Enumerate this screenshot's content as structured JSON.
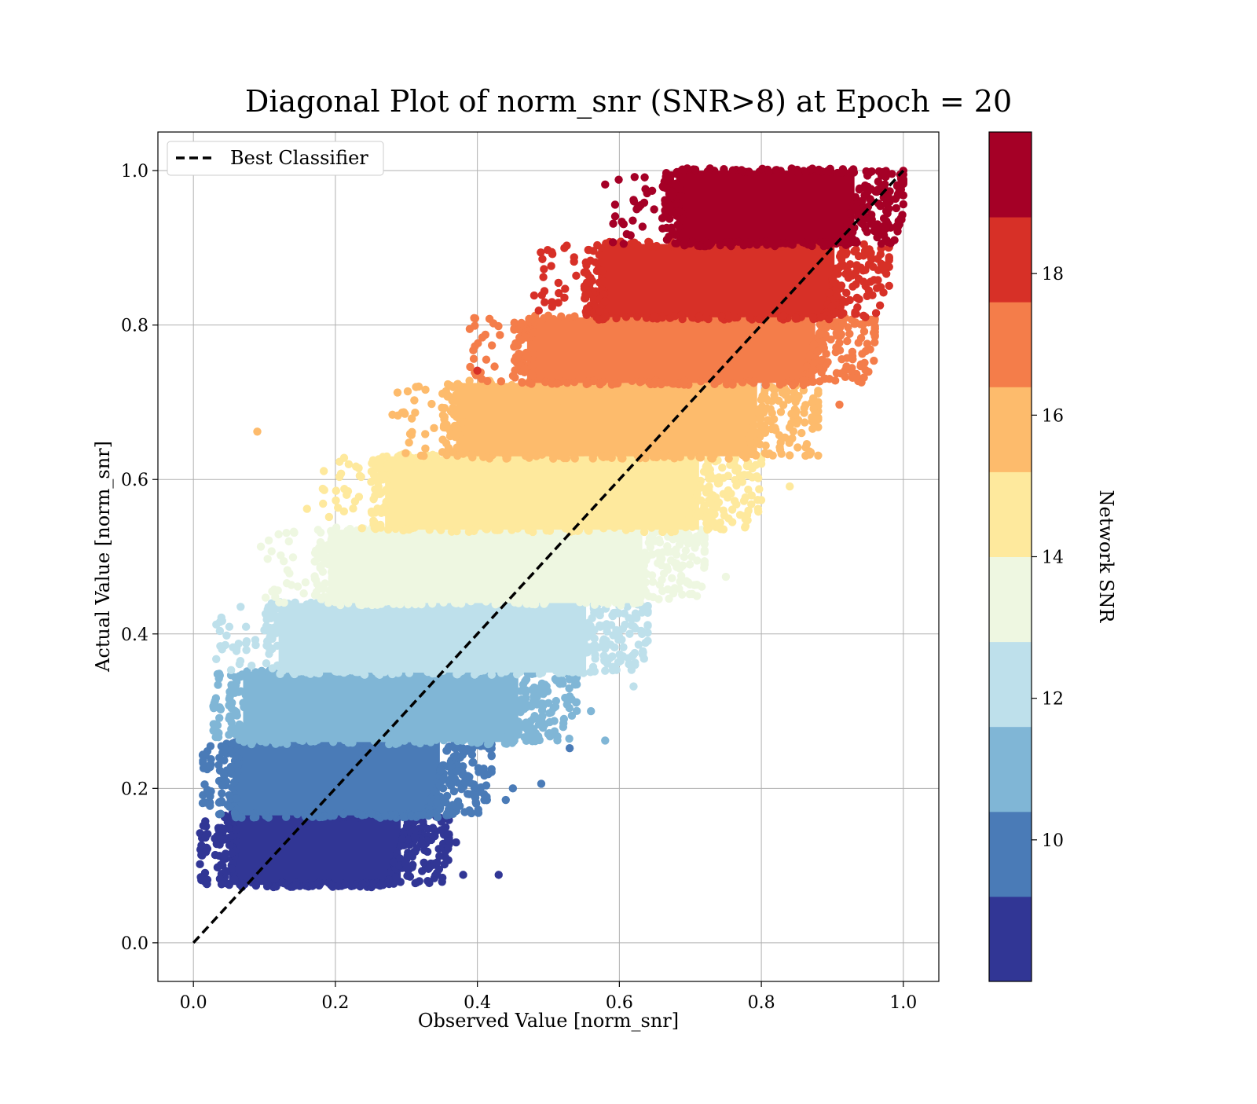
{
  "chart_data": {
    "type": "scatter",
    "title": "Diagonal Plot of norm_snr (SNR>8) at Epoch = 20",
    "xlabel": "Observed Value [norm_snr]",
    "ylabel": "Actual Value [norm_snr]",
    "xlim": [
      -0.05,
      1.05
    ],
    "ylim": [
      -0.05,
      1.05
    ],
    "xticks": [
      "0.0",
      "0.2",
      "0.4",
      "0.6",
      "0.8",
      "1.0"
    ],
    "yticks": [
      "0.0",
      "0.2",
      "0.4",
      "0.6",
      "0.8",
      "1.0"
    ],
    "grid": true,
    "legend": {
      "placement": "upper-left",
      "entries": [
        "Best Classifier"
      ]
    },
    "reference_line": {
      "name": "Best Classifier",
      "style": "dashed",
      "color": "#000000",
      "x": [
        0,
        1
      ],
      "y": [
        0,
        1
      ]
    },
    "colorbar": {
      "label": "Network SNR",
      "range": [
        8,
        20
      ],
      "ticks": [
        "10",
        "12",
        "14",
        "16",
        "18"
      ],
      "bins": [
        {
          "from": 8.0,
          "to": 9.2,
          "color": "#313695"
        },
        {
          "from": 9.2,
          "to": 10.4,
          "color": "#4a7bb7"
        },
        {
          "from": 10.4,
          "to": 11.6,
          "color": "#80b6d6"
        },
        {
          "from": 11.6,
          "to": 12.8,
          "color": "#bee0eb"
        },
        {
          "from": 12.8,
          "to": 14.0,
          "color": "#eef7e1"
        },
        {
          "from": 14.0,
          "to": 15.2,
          "color": "#fee99d"
        },
        {
          "from": 15.2,
          "to": 16.4,
          "color": "#fdbb6c"
        },
        {
          "from": 16.4,
          "to": 17.6,
          "color": "#f47d4a"
        },
        {
          "from": 17.6,
          "to": 18.8,
          "color": "#d73027"
        },
        {
          "from": 18.8,
          "to": 20.0,
          "color": "#a50026"
        }
      ]
    },
    "bands": [
      {
        "snr_bin": 0,
        "y_range": [
          0.075,
          0.165
        ],
        "x_range": [
          0.03,
          0.34
        ]
      },
      {
        "snr_bin": 1,
        "y_range": [
          0.165,
          0.26
        ],
        "x_range": [
          0.035,
          0.4
        ]
      },
      {
        "snr_bin": 2,
        "y_range": [
          0.26,
          0.35
        ],
        "x_range": [
          0.05,
          0.52
        ]
      },
      {
        "snr_bin": 3,
        "y_range": [
          0.35,
          0.44
        ],
        "x_range": [
          0.1,
          0.62
        ]
      },
      {
        "snr_bin": 4,
        "y_range": [
          0.44,
          0.535
        ],
        "x_range": [
          0.17,
          0.7
        ]
      },
      {
        "snr_bin": 5,
        "y_range": [
          0.535,
          0.63
        ],
        "x_range": [
          0.25,
          0.78
        ]
      },
      {
        "snr_bin": 6,
        "y_range": [
          0.63,
          0.725
        ],
        "x_range": [
          0.35,
          0.86
        ]
      },
      {
        "snr_bin": 7,
        "y_range": [
          0.725,
          0.81
        ],
        "x_range": [
          0.45,
          0.94
        ]
      },
      {
        "snr_bin": 8,
        "y_range": [
          0.81,
          0.905
        ],
        "x_range": [
          0.55,
          0.96
        ]
      },
      {
        "snr_bin": 9,
        "y_range": [
          0.905,
          1.0
        ],
        "x_range": [
          0.66,
          0.98
        ]
      }
    ],
    "outliers": [
      [
        0.09,
        0.662,
        6
      ],
      [
        0.43,
        0.088,
        0
      ],
      [
        0.38,
        0.088,
        0
      ],
      [
        0.49,
        0.206,
        1
      ],
      [
        0.53,
        0.252,
        1
      ],
      [
        0.58,
        0.262,
        2
      ],
      [
        0.62,
        0.332,
        3
      ],
      [
        0.56,
        0.3,
        2
      ],
      [
        0.4,
        0.741,
        8
      ],
      [
        0.58,
        0.982,
        9
      ],
      [
        0.62,
        0.962,
        9
      ],
      [
        0.75,
        0.474,
        4
      ],
      [
        0.84,
        0.591,
        5
      ],
      [
        0.88,
        0.631,
        6
      ],
      [
        0.91,
        0.697,
        7
      ],
      [
        0.095,
        0.513,
        4
      ],
      [
        0.12,
        0.529,
        4
      ],
      [
        0.1,
        0.405,
        3
      ],
      [
        0.065,
        0.361,
        3
      ],
      [
        0.52,
        0.702,
        6
      ],
      [
        0.26,
        0.596,
        5
      ],
      [
        0.16,
        0.562,
        5
      ],
      [
        0.45,
        0.2,
        1
      ],
      [
        0.44,
        0.185,
        1
      ],
      [
        0.37,
        0.13,
        0
      ],
      [
        0.33,
        0.08,
        0
      ]
    ]
  }
}
